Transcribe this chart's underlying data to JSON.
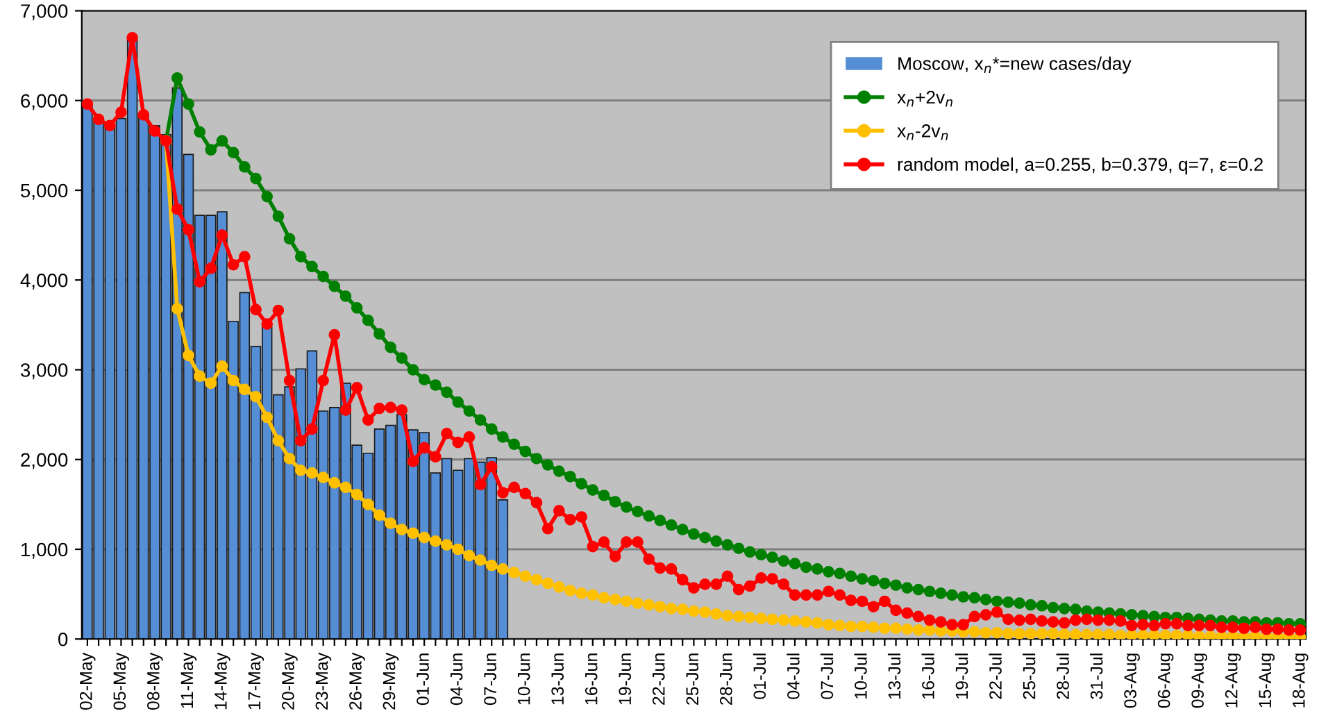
{
  "chart_data": {
    "type": "line",
    "categories": [
      "02-May",
      null,
      null,
      "05-May",
      null,
      null,
      "08-May",
      null,
      null,
      "11-May",
      null,
      null,
      "14-May",
      null,
      null,
      "17-May",
      null,
      null,
      "20-May",
      null,
      null,
      "23-May",
      null,
      null,
      "26-May",
      null,
      null,
      "29-May",
      null,
      null,
      "01-Jun",
      null,
      null,
      "04-Jun",
      null,
      null,
      "07-Jun",
      null,
      null,
      "10-Jun",
      null,
      null,
      "13-Jun",
      null,
      null,
      "16-Jun",
      null,
      null,
      "19-Jun",
      null,
      null,
      "22-Jun",
      null,
      null,
      "25-Jun",
      null,
      null,
      "28-Jun",
      null,
      null,
      "01-Jul",
      null,
      null,
      "04-Jul",
      null,
      null,
      "07-Jul",
      null,
      null,
      "10-Jul",
      null,
      null,
      "13-Jul",
      null,
      null,
      "16-Jul",
      null,
      null,
      "19-Jul",
      null,
      null,
      "22-Jul",
      null,
      null,
      "25-Jul",
      null,
      null,
      "28-Jul",
      null,
      null,
      "31-Jul",
      null,
      null,
      "03-Aug",
      null,
      null,
      "06-Aug",
      null,
      null,
      "09-Aug",
      null,
      null,
      "12-Aug",
      null,
      null,
      "15-Aug",
      null,
      null,
      "18-Aug"
    ],
    "series": [
      {
        "name": "Moscow, x$_{n}$*=new cases/day",
        "type": "bar",
        "color": "#558ed5",
        "values": [
          5930,
          5760,
          5720,
          5800,
          6690,
          5830,
          5720,
          5620,
          6140,
          5400,
          4720,
          4720,
          4760,
          3540,
          3860,
          3260,
          3480,
          2720,
          2810,
          3010,
          3210,
          2540,
          2580,
          2850,
          2160,
          2070,
          2340,
          2380,
          2500,
          2330,
          2300,
          1850,
          2010,
          1880,
          2010,
          1970,
          2020,
          1550,
          null,
          null,
          null,
          null,
          null,
          null,
          null,
          null,
          null,
          null,
          null,
          null,
          null,
          null,
          null,
          null,
          null,
          null,
          null,
          null,
          null,
          null,
          null,
          null,
          null,
          null,
          null,
          null,
          null,
          null,
          null,
          null,
          null,
          null,
          null,
          null,
          null,
          null,
          null,
          null,
          null,
          null,
          null,
          null,
          null,
          null,
          null,
          null,
          null,
          null,
          null,
          null,
          null,
          null,
          null,
          null,
          null,
          null,
          null,
          null,
          null,
          null,
          null,
          null,
          null,
          null,
          null,
          null,
          null,
          null,
          null
        ]
      },
      {
        "name": "x$_{n}$+2v$_{n}$",
        "color": "#008000",
        "values": [
          null,
          null,
          null,
          null,
          null,
          null,
          null,
          5550,
          6250,
          5960,
          5650,
          5450,
          5550,
          5420,
          5260,
          5130,
          4930,
          4710,
          4460,
          4260,
          4150,
          4040,
          3930,
          3820,
          3690,
          3550,
          3400,
          3250,
          3130,
          3000,
          2890,
          2830,
          2750,
          2640,
          2540,
          2440,
          2340,
          2250,
          2170,
          2090,
          2010,
          1940,
          1870,
          1810,
          1730,
          1660,
          1600,
          1530,
          1470,
          1420,
          1370,
          1320,
          1270,
          1220,
          1170,
          1130,
          1090,
          1050,
          1010,
          970,
          940,
          910,
          870,
          840,
          800,
          780,
          750,
          730,
          700,
          670,
          650,
          620,
          600,
          570,
          550,
          530,
          510,
          490,
          470,
          460,
          440,
          420,
          410,
          400,
          380,
          370,
          350,
          340,
          330,
          310,
          300,
          290,
          280,
          270,
          260,
          250,
          240,
          240,
          230,
          220,
          210,
          200,
          200,
          190,
          190,
          180,
          180,
          170,
          170
        ]
      },
      {
        "name": "x$_{n}$-2v$_{n}$",
        "color": "#ffc000",
        "values": [
          null,
          null,
          null,
          null,
          null,
          null,
          null,
          5550,
          3680,
          3160,
          2930,
          2850,
          3040,
          2880,
          2780,
          2700,
          2470,
          2210,
          2010,
          1880,
          1850,
          1800,
          1740,
          1690,
          1610,
          1500,
          1380,
          1290,
          1220,
          1180,
          1130,
          1090,
          1050,
          1000,
          930,
          880,
          820,
          780,
          740,
          700,
          660,
          620,
          580,
          540,
          510,
          490,
          460,
          440,
          420,
          400,
          380,
          360,
          340,
          330,
          310,
          300,
          280,
          260,
          250,
          240,
          230,
          220,
          210,
          200,
          190,
          180,
          160,
          150,
          140,
          140,
          130,
          120,
          120,
          110,
          100,
          100,
          90,
          90,
          80,
          80,
          70,
          70,
          60,
          60,
          60,
          60,
          60,
          50,
          50,
          50,
          50,
          50,
          40,
          40,
          40,
          40,
          40,
          40,
          40,
          30,
          30,
          30,
          30,
          30,
          30,
          30,
          30,
          30,
          20
        ]
      },
      {
        "name": "random model, a=0.255, b=0.379, q=7, ε=0.2",
        "color": "#ff0000",
        "values": [
          5960,
          5790,
          5720,
          5870,
          6700,
          5840,
          5660,
          5550,
          4790,
          4560,
          3980,
          4130,
          4500,
          4170,
          4260,
          3670,
          3510,
          3660,
          2880,
          2210,
          2340,
          2880,
          3390,
          2550,
          2800,
          2440,
          2570,
          2580,
          2550,
          1980,
          2130,
          2030,
          2290,
          2190,
          2250,
          1720,
          1920,
          1630,
          1690,
          1620,
          1520,
          1230,
          1430,
          1330,
          1360,
          1030,
          1080,
          920,
          1080,
          1080,
          890,
          790,
          780,
          660,
          570,
          610,
          610,
          700,
          550,
          590,
          680,
          670,
          610,
          490,
          490,
          490,
          530,
          490,
          430,
          420,
          360,
          420,
          320,
          290,
          250,
          210,
          190,
          160,
          160,
          250,
          270,
          300,
          220,
          210,
          220,
          200,
          190,
          180,
          210,
          220,
          210,
          210,
          200,
          150,
          160,
          150,
          170,
          170,
          150,
          150,
          150,
          130,
          130,
          120,
          130,
          110,
          110,
          100,
          100
        ]
      }
    ],
    "ylim": [
      0,
      7000
    ],
    "yticks": [
      0,
      {
        "value": 1000,
        "label": "1,000"
      },
      {
        "value": 2000,
        "label": "2,000"
      },
      {
        "value": 3000,
        "label": "3,000"
      },
      {
        "value": 4000,
        "label": "4,000"
      },
      {
        "value": 5000,
        "label": "5,000"
      },
      {
        "value": 6000,
        "label": "6,000"
      },
      {
        "value": 7000,
        "label": "7,000"
      }
    ],
    "grid": "y",
    "legend": "top right",
    "marker": "circle",
    "line_style": "solid"
  }
}
